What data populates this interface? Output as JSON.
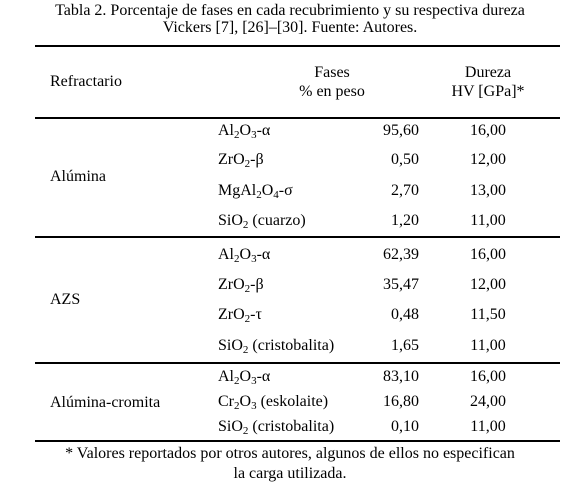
{
  "caption": [
    "Tabla 2. Porcentaje de fases en cada recubrimiento y su respectiva dureza",
    "Vickers [7], [26]–[30]. Fuente: Autores."
  ],
  "table": {
    "header": {
      "refractory": "Refractario",
      "phases": [
        "Fases",
        "% en peso"
      ],
      "hardness": [
        "Dureza",
        "HV [GPa]*"
      ]
    },
    "groups": [
      {
        "name": "Alúmina",
        "rows": [
          [
            "Al2O3-α",
            "95,60",
            "16,00"
          ],
          [
            "ZrO2-β",
            "0,50",
            "12,00"
          ],
          [
            "MgAl2O4-σ",
            "2,70",
            "13,00"
          ],
          [
            "SiO2 (cuarzo)",
            "1,20",
            "11,00"
          ]
        ]
      },
      {
        "name": "AZS",
        "rows": [
          [
            "Al2O3-α",
            "62,39",
            "16,00"
          ],
          [
            "ZrO2-β",
            "35,47",
            "12,00"
          ],
          [
            "ZrO2-τ",
            "0,48",
            "11,50"
          ],
          [
            "SiO2 (cristobalita)",
            "1,65",
            "11,00"
          ]
        ]
      },
      {
        "name": "Alúmina-cromita",
        "rows": [
          [
            "Al2O3-α",
            "83,10",
            "16,00"
          ],
          [
            "Cr2O3 (eskolaite)",
            "16,80",
            "24,00"
          ],
          [
            "SiO2 (cristobalita)",
            "0,10",
            "11,00"
          ]
        ]
      }
    ]
  },
  "footnote": [
    "* Valores reportados por otros autores, algunos de ellos no especifican",
    "la carga utilizada."
  ]
}
